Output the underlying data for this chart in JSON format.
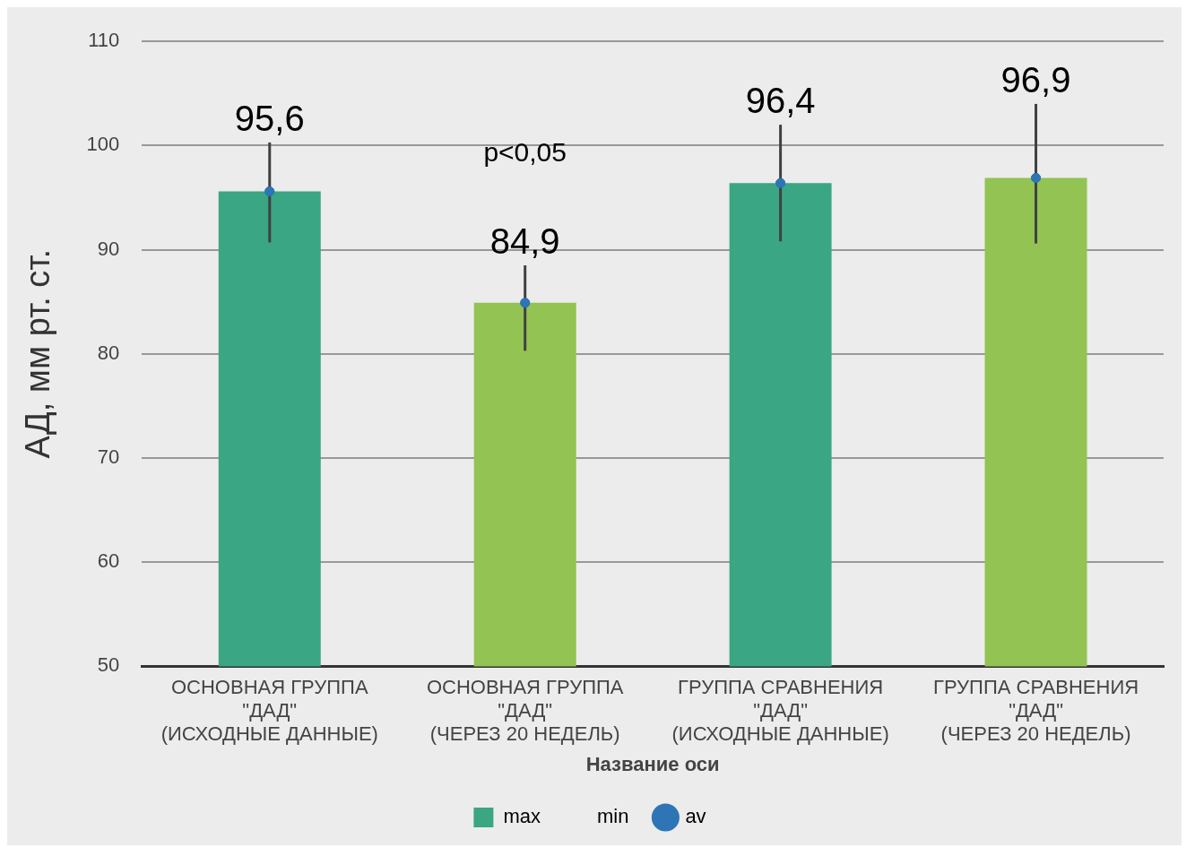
{
  "chart_data": {
    "type": "bar",
    "ylabel": "АД, мм рт. ст.",
    "xlabel": "Название оси",
    "categories": [
      "ОСНОВНАЯ ГРУППА\n\"ДАД\"\n(ИСХОДНЫЕ ДАННЫЕ)",
      "ОСНОВНАЯ ГРУППА\n\"ДАД\"\n(ЧЕРЕЗ 20 НЕДЕЛЬ)",
      "ГРУППА СРАВНЕНИЯ\n\"ДАД\"\n(ИСХОДНЫЕ ДАННЫЕ)",
      "ГРУППА СРАВНЕНИЯ\n\"ДАД\"\n(ЧЕРЕЗ 20 НЕДЕЛЬ)"
    ],
    "series": [
      {
        "name": "max",
        "colors": [
          "#3aa683",
          "#92c353",
          "#3aa683",
          "#92c353"
        ],
        "color": "#3aa683",
        "values": [
          95.6,
          84.9,
          96.4,
          96.9
        ],
        "errors": [
          [
            90.7,
            100.3
          ],
          [
            80.3,
            88.5
          ],
          [
            90.8,
            102
          ],
          [
            90.6,
            104
          ]
        ],
        "value_labels": [
          "95,6",
          "84,9",
          "96,4",
          "96,9"
        ]
      },
      {
        "name": "min",
        "type": "bar",
        "color": null,
        "values": [
          null,
          null,
          null,
          null
        ]
      },
      {
        "name": "av",
        "type": "scatter",
        "color": "#2e75b6",
        "marker": "circle",
        "x": [
          "ОСНОВНАЯ ГРУППА\n\"ДАД\"\n(ИСХОДНЫЕ ДАННЫЕ)",
          "ОСНОВНАЯ ГРУППА\n\"ДАД\"\n(ЧЕРЕЗ 20 НЕДЕЛЬ)",
          "ГРУППА СРАВНЕНИЯ\n\"ДАД\"\n(ИСХОДНЫЕ ДАННЫЕ)",
          "ГРУППА СРАВНЕНИЯ\n\"ДАД\"\n(ЧЕРЕЗ 20 НЕДЕЛЬ)"
        ],
        "values": [
          95.6,
          84.9,
          96.4,
          96.9
        ]
      }
    ],
    "ylim": [
      50,
      110
    ],
    "yticks": [
      50,
      60,
      70,
      80,
      90,
      100,
      110
    ],
    "grid": "y",
    "legend": "bottom",
    "annotations": [
      "p<0,05"
    ]
  }
}
